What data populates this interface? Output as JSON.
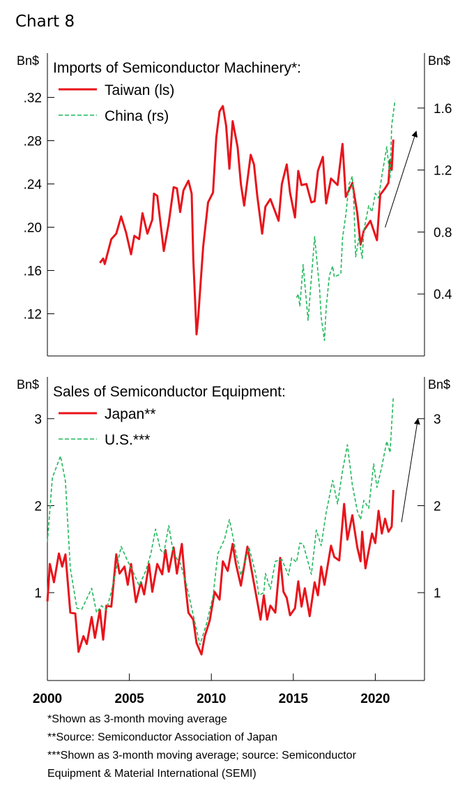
{
  "title": "Chart 8",
  "footnotes": [
    "*Shown as 3-month moving average",
    "**Source: Semiconductor Association of Japan",
    "***Shown as 3-month moving average; source: Semiconductor",
    "Equipment & Material International (SEMI)"
  ],
  "colors": {
    "red": "#e8141b",
    "green": "#1fb85a",
    "axis": "#000000"
  },
  "chart_data": [
    {
      "type": "line",
      "title": "Imports of Semiconductor Machinery*:",
      "ylabel_left": "Bn$",
      "ylabel_right": "Bn$",
      "xlim": [
        2000,
        2023
      ],
      "ylim_left": [
        0.081,
        0.361
      ],
      "ylim_right": [
        0.0,
        1.955
      ],
      "yticks_left": [
        {
          "v": 0.32,
          "label": ".32"
        },
        {
          "v": 0.28,
          "label": ".28"
        },
        {
          "v": 0.24,
          "label": ".24"
        },
        {
          "v": 0.2,
          "label": ".20"
        },
        {
          "v": 0.16,
          "label": ".16"
        },
        {
          "v": 0.12,
          "label": ".12"
        }
      ],
      "yticks_right": [
        {
          "v": 1.6,
          "label": "1.6"
        },
        {
          "v": 1.2,
          "label": "1.2"
        },
        {
          "v": 0.8,
          "label": "0.8"
        },
        {
          "v": 0.4,
          "label": "0.4"
        }
      ],
      "legend_position": "top-left",
      "annotation": {
        "type": "arrow",
        "from": [
          2020.6,
          0.83
        ],
        "to": [
          2022.5,
          1.45
        ],
        "axis": "right"
      },
      "series": [
        {
          "name": "Taiwan (ls)",
          "axis": "left",
          "color": "#e8141b",
          "style": "solid",
          "x": [
            2003.2,
            2003.4,
            2003.5,
            2003.9,
            2004.2,
            2004.5,
            2004.8,
            2005.1,
            2005.3,
            2005.6,
            2005.8,
            2006.1,
            2006.4,
            2006.5,
            2006.7,
            2007.1,
            2007.4,
            2007.7,
            2007.9,
            2008.1,
            2008.3,
            2008.6,
            2008.8,
            2008.9,
            2009.1,
            2009.2,
            2009.5,
            2009.8,
            2010.1,
            2010.3,
            2010.5,
            2010.7,
            2010.9,
            2011.1,
            2011.3,
            2011.6,
            2011.8,
            2012.0,
            2012.4,
            2012.6,
            2012.8,
            2013.1,
            2013.3,
            2013.6,
            2013.9,
            2014.1,
            2014.3,
            2014.6,
            2014.8,
            2015.1,
            2015.3,
            2015.5,
            2015.8,
            2016.1,
            2016.3,
            2016.5,
            2016.8,
            2017.0,
            2017.3,
            2017.7,
            2018.0,
            2018.2,
            2018.6,
            2018.9,
            2019.1,
            2019.3,
            2019.7,
            2020.1,
            2020.3,
            2020.6,
            2020.8,
            2020.9,
            2021.0,
            2021.1
          ],
          "y": [
            0.167,
            0.171,
            0.166,
            0.189,
            0.194,
            0.21,
            0.195,
            0.175,
            0.192,
            0.189,
            0.213,
            0.194,
            0.207,
            0.231,
            0.229,
            0.178,
            0.204,
            0.237,
            0.236,
            0.214,
            0.234,
            0.243,
            0.231,
            0.171,
            0.101,
            0.117,
            0.182,
            0.223,
            0.232,
            0.283,
            0.307,
            0.312,
            0.294,
            0.254,
            0.298,
            0.274,
            0.24,
            0.22,
            0.267,
            0.258,
            0.229,
            0.194,
            0.219,
            0.226,
            0.214,
            0.206,
            0.24,
            0.258,
            0.232,
            0.209,
            0.252,
            0.239,
            0.24,
            0.223,
            0.224,
            0.252,
            0.265,
            0.222,
            0.245,
            0.239,
            0.277,
            0.228,
            0.241,
            0.213,
            0.184,
            0.197,
            0.206,
            0.188,
            0.23,
            0.236,
            0.241,
            0.262,
            0.253,
            0.281
          ]
        },
        {
          "name": "China (rs)",
          "axis": "right",
          "color": "#1fb85a",
          "style": "dashed",
          "x": [
            2015.2,
            2015.3,
            2015.4,
            2015.6,
            2015.9,
            2016.1,
            2016.3,
            2016.6,
            2016.7,
            2016.9,
            2017.0,
            2017.2,
            2017.4,
            2017.5,
            2017.9,
            2018.0,
            2018.2,
            2018.4,
            2018.6,
            2018.7,
            2018.8,
            2019.0,
            2019.2,
            2019.3,
            2019.6,
            2019.8,
            2020.0,
            2020.2,
            2020.4,
            2020.7,
            2020.9,
            2021.0,
            2021.2
          ],
          "y": [
            0.376,
            0.4,
            0.32,
            0.59,
            0.23,
            0.5,
            0.77,
            0.43,
            0.25,
            0.1,
            0.31,
            0.52,
            0.58,
            0.51,
            0.53,
            0.76,
            0.91,
            1.11,
            1.16,
            0.96,
            0.64,
            0.76,
            0.63,
            0.81,
            0.97,
            0.93,
            1.05,
            1.02,
            1.16,
            1.35,
            1.15,
            1.49,
            1.65
          ]
        }
      ]
    },
    {
      "type": "line",
      "title": "Sales of Semiconductor Equipment:",
      "ylabel_left": "Bn$",
      "ylabel_right": "Bn$",
      "xlim": [
        2000,
        2023
      ],
      "ylim_left": [
        -0.01,
        3.48
      ],
      "ylim_right": [
        -0.01,
        3.48
      ],
      "yticks_left": [
        {
          "v": 3,
          "label": "3"
        },
        {
          "v": 2,
          "label": "2"
        },
        {
          "v": 1,
          "label": "1"
        }
      ],
      "yticks_right": [
        {
          "v": 3,
          "label": "3"
        },
        {
          "v": 2,
          "label": "2"
        },
        {
          "v": 1,
          "label": "1"
        }
      ],
      "xticks": [
        {
          "v": 2000,
          "label": "2000"
        },
        {
          "v": 2005,
          "label": "2005"
        },
        {
          "v": 2010,
          "label": "2010"
        },
        {
          "v": 2015,
          "label": "2015"
        },
        {
          "v": 2020,
          "label": "2020"
        }
      ],
      "legend_position": "top-left",
      "annotation": {
        "type": "arrow",
        "from": [
          2021.6,
          1.81
        ],
        "to": [
          2022.6,
          3.0
        ],
        "axis": "left"
      },
      "series": [
        {
          "name": "Japan**",
          "color": "#e8141b",
          "style": "solid",
          "x": [
            2000.0,
            2000.15,
            2000.4,
            2000.7,
            2000.9,
            2001.1,
            2001.4,
            2001.7,
            2001.9,
            2002.2,
            2002.4,
            2002.7,
            2002.9,
            2003.2,
            2003.4,
            2003.6,
            2003.9,
            2004.2,
            2004.4,
            2004.7,
            2004.9,
            2005.1,
            2005.4,
            2005.7,
            2005.9,
            2006.2,
            2006.4,
            2006.7,
            2007.0,
            2007.2,
            2007.4,
            2007.7,
            2007.9,
            2008.2,
            2008.4,
            2008.6,
            2008.9,
            2009.1,
            2009.4,
            2009.6,
            2009.9,
            2010.2,
            2010.5,
            2010.7,
            2011.0,
            2011.3,
            2011.5,
            2011.8,
            2012.2,
            2012.5,
            2012.8,
            2013.0,
            2013.2,
            2013.4,
            2013.6,
            2013.9,
            2014.2,
            2014.4,
            2014.6,
            2014.8,
            2015.1,
            2015.3,
            2015.5,
            2015.7,
            2016.0,
            2016.3,
            2016.5,
            2016.7,
            2016.9,
            2017.3,
            2017.5,
            2017.8,
            2018.1,
            2018.3,
            2018.6,
            2018.9,
            2019.1,
            2019.2,
            2019.4,
            2019.8,
            2020.0,
            2020.2,
            2020.4,
            2020.6,
            2020.8,
            2021.0,
            2021.1
          ],
          "y": [
            0.9,
            1.33,
            1.12,
            1.45,
            1.3,
            1.44,
            0.77,
            0.76,
            0.32,
            0.5,
            0.41,
            0.72,
            0.48,
            0.8,
            0.46,
            0.85,
            0.84,
            1.44,
            1.22,
            1.3,
            1.09,
            1.33,
            0.89,
            1.12,
            0.98,
            1.33,
            1.01,
            1.33,
            1.21,
            1.49,
            1.24,
            1.52,
            1.22,
            1.56,
            1.12,
            0.77,
            0.69,
            0.42,
            0.29,
            0.5,
            0.68,
            1.01,
            0.92,
            1.36,
            1.25,
            1.56,
            1.33,
            1.08,
            1.53,
            1.21,
            0.9,
            0.69,
            0.97,
            0.69,
            0.85,
            0.77,
            1.4,
            1.01,
            0.94,
            0.74,
            0.82,
            1.13,
            0.84,
            1.05,
            0.73,
            1.12,
            0.97,
            1.3,
            1.09,
            1.54,
            1.41,
            1.37,
            2.02,
            1.61,
            1.89,
            1.52,
            1.36,
            1.7,
            1.28,
            1.68,
            1.57,
            1.94,
            1.68,
            1.85,
            1.7,
            1.76,
            2.18
          ]
        },
        {
          "name": "U.S.***",
          "color": "#1fb85a",
          "style": "dashed",
          "x": [
            2000.0,
            2000.3,
            2000.8,
            2001.1,
            2001.2,
            2001.4,
            2001.8,
            2002.1,
            2002.7,
            2003.0,
            2003.3,
            2003.6,
            2003.9,
            2004.5,
            2004.9,
            2005.2,
            2005.6,
            2006.0,
            2006.3,
            2006.6,
            2006.9,
            2007.1,
            2007.4,
            2007.7,
            2008.1,
            2008.5,
            2008.9,
            2009.3,
            2009.7,
            2010.1,
            2010.4,
            2010.8,
            2011.1,
            2011.3,
            2011.5,
            2011.8,
            2012.3,
            2012.7,
            2012.9,
            2013.2,
            2013.3,
            2013.6,
            2013.9,
            2014.3,
            2014.7,
            2014.9,
            2015.2,
            2015.4,
            2015.6,
            2016.1,
            2016.4,
            2016.7,
            2017.0,
            2017.4,
            2017.7,
            2018.0,
            2018.3,
            2018.6,
            2018.9,
            2019.1,
            2019.3,
            2019.6,
            2019.9,
            2020.1,
            2020.4,
            2020.7,
            2020.9,
            2021.1
          ],
          "y": [
            1.58,
            2.32,
            2.57,
            2.28,
            1.94,
            1.28,
            0.82,
            0.81,
            1.05,
            0.77,
            0.85,
            0.8,
            1.01,
            1.53,
            1.36,
            1.25,
            1.08,
            1.25,
            1.44,
            1.73,
            1.49,
            1.45,
            1.77,
            1.44,
            1.34,
            1.08,
            0.74,
            0.4,
            0.64,
            0.96,
            1.45,
            1.61,
            1.84,
            1.66,
            1.46,
            1.2,
            1.52,
            1.22,
            0.97,
            1.0,
            1.22,
            1.04,
            1.36,
            1.38,
            1.2,
            1.4,
            1.35,
            1.57,
            1.56,
            1.21,
            1.72,
            1.54,
            1.92,
            2.29,
            2.02,
            2.4,
            2.7,
            2.24,
            1.94,
            1.84,
            2.06,
            1.97,
            2.48,
            2.21,
            2.45,
            2.74,
            2.61,
            3.25
          ]
        }
      ]
    }
  ]
}
